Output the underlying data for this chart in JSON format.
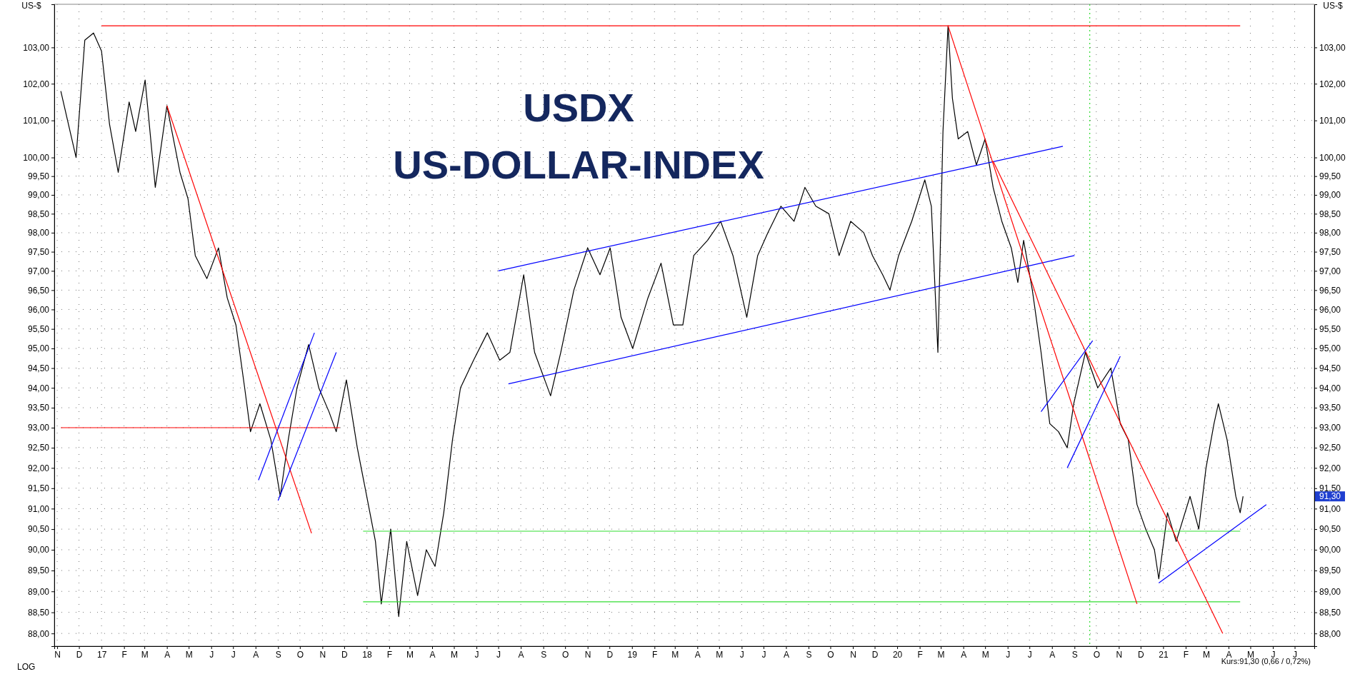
{
  "chart_data": {
    "type": "line",
    "title": "USDX",
    "subtitle": "US-DOLLAR-INDEX",
    "ylabel": "US-$",
    "y2label": "US-$",
    "log": true,
    "grid": true,
    "line_style": "solid",
    "marker": "none",
    "xlim": [
      "2016-10-28",
      "2021-07-28"
    ],
    "xticks": [
      {
        "value": "2016-11-01",
        "label": "N"
      },
      {
        "value": "2016-12-01",
        "label": "D"
      },
      {
        "value": "2017-01-01",
        "label": "17"
      },
      {
        "value": "2017-02-01",
        "label": "F"
      },
      {
        "value": "2017-03-01",
        "label": "M"
      },
      {
        "value": "2017-04-01",
        "label": "A"
      },
      {
        "value": "2017-05-01",
        "label": "M"
      },
      {
        "value": "2017-06-01",
        "label": "J"
      },
      {
        "value": "2017-07-01",
        "label": "J"
      },
      {
        "value": "2017-08-01",
        "label": "A"
      },
      {
        "value": "2017-09-01",
        "label": "S"
      },
      {
        "value": "2017-10-01",
        "label": "O"
      },
      {
        "value": "2017-11-01",
        "label": "N"
      },
      {
        "value": "2017-12-01",
        "label": "D"
      },
      {
        "value": "2018-01-01",
        "label": "18"
      },
      {
        "value": "2018-02-01",
        "label": "F"
      },
      {
        "value": "2018-03-01",
        "label": "M"
      },
      {
        "value": "2018-04-01",
        "label": "A"
      },
      {
        "value": "2018-05-01",
        "label": "M"
      },
      {
        "value": "2018-06-01",
        "label": "J"
      },
      {
        "value": "2018-07-01",
        "label": "J"
      },
      {
        "value": "2018-08-01",
        "label": "A"
      },
      {
        "value": "2018-09-01",
        "label": "S"
      },
      {
        "value": "2018-10-01",
        "label": "O"
      },
      {
        "value": "2018-11-01",
        "label": "N"
      },
      {
        "value": "2018-12-01",
        "label": "D"
      },
      {
        "value": "2019-01-01",
        "label": "19"
      },
      {
        "value": "2019-02-01",
        "label": "F"
      },
      {
        "value": "2019-03-01",
        "label": "M"
      },
      {
        "value": "2019-04-01",
        "label": "A"
      },
      {
        "value": "2019-05-01",
        "label": "M"
      },
      {
        "value": "2019-06-01",
        "label": "J"
      },
      {
        "value": "2019-07-01",
        "label": "J"
      },
      {
        "value": "2019-08-01",
        "label": "A"
      },
      {
        "value": "2019-09-01",
        "label": "S"
      },
      {
        "value": "2019-10-01",
        "label": "O"
      },
      {
        "value": "2019-11-01",
        "label": "N"
      },
      {
        "value": "2019-12-01",
        "label": "D"
      },
      {
        "value": "2020-01-01",
        "label": "20"
      },
      {
        "value": "2020-02-01",
        "label": "F"
      },
      {
        "value": "2020-03-01",
        "label": "M"
      },
      {
        "value": "2020-04-01",
        "label": "A"
      },
      {
        "value": "2020-05-01",
        "label": "M"
      },
      {
        "value": "2020-06-01",
        "label": "J"
      },
      {
        "value": "2020-07-01",
        "label": "J"
      },
      {
        "value": "2020-08-01",
        "label": "A"
      },
      {
        "value": "2020-09-01",
        "label": "S"
      },
      {
        "value": "2020-10-01",
        "label": "O"
      },
      {
        "value": "2020-11-01",
        "label": "N"
      },
      {
        "value": "2020-12-01",
        "label": "D"
      },
      {
        "value": "2021-01-01",
        "label": "21"
      },
      {
        "value": "2021-02-01",
        "label": "F"
      },
      {
        "value": "2021-03-01",
        "label": "M"
      },
      {
        "value": "2021-04-01",
        "label": "A"
      },
      {
        "value": "2021-05-01",
        "label": "M"
      },
      {
        "value": "2021-06-01",
        "label": "J"
      },
      {
        "value": "2021-07-01",
        "label": "J"
      }
    ],
    "ylim": [
      87.7,
      104.2
    ],
    "yticks": [
      {
        "value": 88,
        "label": "88,00"
      },
      {
        "value": 88.5,
        "label": "88,50"
      },
      {
        "value": 89,
        "label": "89,00"
      },
      {
        "value": 89.5,
        "label": "89,50"
      },
      {
        "value": 90,
        "label": "90,00"
      },
      {
        "value": 90.5,
        "label": "90,50"
      },
      {
        "value": 91,
        "label": "91,00"
      },
      {
        "value": 91.5,
        "label": "91,50"
      },
      {
        "value": 92,
        "label": "92,00"
      },
      {
        "value": 92.5,
        "label": "92,50"
      },
      {
        "value": 93,
        "label": "93,00"
      },
      {
        "value": 93.5,
        "label": "93,50"
      },
      {
        "value": 94,
        "label": "94,00"
      },
      {
        "value": 94.5,
        "label": "94,50"
      },
      {
        "value": 95,
        "label": "95,00"
      },
      {
        "value": 95.5,
        "label": "95,50"
      },
      {
        "value": 96,
        "label": "96,00"
      },
      {
        "value": 96.5,
        "label": "96,50"
      },
      {
        "value": 97,
        "label": "97,00"
      },
      {
        "value": 97.5,
        "label": "97,50"
      },
      {
        "value": 98,
        "label": "98,00"
      },
      {
        "value": 98.5,
        "label": "98,50"
      },
      {
        "value": 99,
        "label": "99,00"
      },
      {
        "value": 99.5,
        "label": "99,50"
      },
      {
        "value": 100,
        "label": "100,00"
      },
      {
        "value": 101,
        "label": "101,00"
      },
      {
        "value": 102,
        "label": "102,00"
      },
      {
        "value": 103,
        "label": "103,00"
      }
    ],
    "ref_lines": [
      {
        "axis": "x",
        "value": "2020-09-22",
        "color": "#33dd33",
        "line_style": "dotted"
      }
    ],
    "annotations": [
      "LOG",
      "Kurs:91,30 (0,66 / 0,72%)",
      "91,30"
    ],
    "series": [
      {
        "type": "line",
        "color": "#000000",
        "x": [
          "2016-11-06",
          "2016-11-27",
          "2016-12-09",
          "2016-12-21",
          "2017-01-01",
          "2017-01-12",
          "2017-01-24",
          "2017-02-08",
          "2017-02-17",
          "2017-03-02",
          "2017-03-16",
          "2017-04-01",
          "2017-04-19",
          "2017-04-30",
          "2017-05-10",
          "2017-05-26",
          "2017-06-11",
          "2017-06-23",
          "2017-07-05",
          "2017-07-17",
          "2017-07-25",
          "2017-08-07",
          "2017-08-22",
          "2017-09-04",
          "2017-09-15",
          "2017-09-27",
          "2017-10-13",
          "2017-10-27",
          "2017-11-10",
          "2017-11-20",
          "2017-12-04",
          "2017-12-19",
          "2018-01-01",
          "2018-01-13",
          "2018-01-21",
          "2018-02-03",
          "2018-02-14",
          "2018-02-25",
          "2018-03-12",
          "2018-03-24",
          "2018-04-05",
          "2018-04-17",
          "2018-04-29",
          "2018-05-10",
          "2018-05-28",
          "2018-06-16",
          "2018-07-03",
          "2018-07-17",
          "2018-08-05",
          "2018-08-20",
          "2018-09-11",
          "2018-09-25",
          "2018-10-13",
          "2018-11-01",
          "2018-11-18",
          "2018-12-02",
          "2018-12-17",
          "2019-01-02",
          "2019-01-23",
          "2019-02-10",
          "2019-02-27",
          "2019-03-12",
          "2019-03-27",
          "2019-04-15",
          "2019-05-03",
          "2019-05-20",
          "2019-06-08",
          "2019-06-23",
          "2019-07-07",
          "2019-07-25",
          "2019-08-12",
          "2019-08-27",
          "2019-09-11",
          "2019-09-29",
          "2019-10-13",
          "2019-10-29",
          "2019-11-16",
          "2019-11-28",
          "2019-12-12",
          "2019-12-22",
          "2020-01-03",
          "2020-01-21",
          "2020-02-08",
          "2020-02-17",
          "2020-02-26",
          "2020-03-04",
          "2020-03-11",
          "2020-03-17",
          "2020-03-25",
          "2020-04-07",
          "2020-04-19",
          "2020-05-01",
          "2020-05-12",
          "2020-05-24",
          "2020-06-06",
          "2020-06-15",
          "2020-06-23",
          "2020-07-05",
          "2020-07-17",
          "2020-07-29",
          "2020-08-10",
          "2020-08-22",
          "2020-08-31",
          "2020-09-16",
          "2020-10-03",
          "2020-10-21",
          "2020-11-03",
          "2020-11-14",
          "2020-11-26",
          "2020-12-08",
          "2020-12-20",
          "2020-12-26",
          "2021-01-07",
          "2021-01-19",
          "2021-02-07",
          "2021-02-19",
          "2021-03-01",
          "2021-03-12",
          "2021-03-18",
          "2021-03-30",
          "2021-04-11",
          "2021-04-17",
          "2021-04-21"
        ],
        "values": [
          101.8,
          100.0,
          103.2,
          103.4,
          102.9,
          100.9,
          99.6,
          101.5,
          100.7,
          102.1,
          99.2,
          101.4,
          99.6,
          98.9,
          97.4,
          96.8,
          97.6,
          96.3,
          95.6,
          94.0,
          92.9,
          93.6,
          92.7,
          91.3,
          92.7,
          94.0,
          95.1,
          94.0,
          93.4,
          92.9,
          94.2,
          92.5,
          91.3,
          90.2,
          88.7,
          90.5,
          88.4,
          90.2,
          88.9,
          90.0,
          89.6,
          90.9,
          92.7,
          94.0,
          94.7,
          95.4,
          94.7,
          94.9,
          96.9,
          94.9,
          93.8,
          94.9,
          96.5,
          97.6,
          96.9,
          97.6,
          95.8,
          95.0,
          96.3,
          97.2,
          95.6,
          95.6,
          97.4,
          97.8,
          98.3,
          97.4,
          95.8,
          97.4,
          98.0,
          98.7,
          98.3,
          99.2,
          98.7,
          98.5,
          97.4,
          98.3,
          98.0,
          97.4,
          96.9,
          96.5,
          97.4,
          98.3,
          99.4,
          98.7,
          94.9,
          100.7,
          103.6,
          101.6,
          100.5,
          100.7,
          99.8,
          100.5,
          99.2,
          98.3,
          97.6,
          96.7,
          97.8,
          96.5,
          94.9,
          93.1,
          92.9,
          92.5,
          93.6,
          94.9,
          94.0,
          94.5,
          93.1,
          92.7,
          91.1,
          90.5,
          90.0,
          89.3,
          90.9,
          90.2,
          91.3,
          90.5,
          92.0,
          93.1,
          93.6,
          92.7,
          91.3,
          90.9,
          91.3
        ]
      },
      {
        "type": "line",
        "color": "#ff0000",
        "x": [
          "2017-01-01",
          "2021-04-17"
        ],
        "values": [
          103.6,
          103.6
        ]
      },
      {
        "type": "line",
        "color": "#ff0000",
        "x": [
          "2016-11-06",
          "2017-11-25"
        ],
        "values": [
          93.0,
          93.0
        ]
      },
      {
        "type": "line",
        "color": "#33dd33",
        "x": [
          "2017-12-27",
          "2021-04-17"
        ],
        "values": [
          90.45,
          90.45
        ]
      },
      {
        "type": "line",
        "color": "#33dd33",
        "x": [
          "2017-12-27",
          "2021-04-17"
        ],
        "values": [
          88.75,
          88.75
        ]
      },
      {
        "type": "line",
        "color": "#ff0000",
        "x": [
          "2017-04-01",
          "2017-10-17"
        ],
        "values": [
          101.4,
          90.4
        ]
      },
      {
        "type": "line",
        "color": "#0000ff",
        "x": [
          "2017-08-05",
          "2017-10-21"
        ],
        "values": [
          91.7,
          95.4
        ]
      },
      {
        "type": "line",
        "color": "#0000ff",
        "x": [
          "2017-09-01",
          "2017-11-20"
        ],
        "values": [
          91.2,
          94.9
        ]
      },
      {
        "type": "line",
        "color": "#0000ff",
        "x": [
          "2018-07-01",
          "2020-08-16"
        ],
        "values": [
          97.0,
          100.3
        ]
      },
      {
        "type": "line",
        "color": "#0000ff",
        "x": [
          "2018-07-15",
          "2020-09-01"
        ],
        "values": [
          94.1,
          97.4
        ]
      },
      {
        "type": "line",
        "color": "#ff0000",
        "x": [
          "2020-03-11",
          "2020-11-26"
        ],
        "values": [
          103.6,
          88.7
        ]
      },
      {
        "type": "line",
        "color": "#ff0000",
        "x": [
          "2020-05-12",
          "2021-03-24"
        ],
        "values": [
          99.9,
          88.0
        ]
      },
      {
        "type": "line",
        "color": "#0000ff",
        "x": [
          "2020-07-17",
          "2020-09-26"
        ],
        "values": [
          93.4,
          95.2
        ]
      },
      {
        "type": "line",
        "color": "#0000ff",
        "x": [
          "2020-08-22",
          "2020-11-03"
        ],
        "values": [
          92.0,
          94.8
        ]
      },
      {
        "type": "line",
        "color": "#0000ff",
        "x": [
          "2020-12-26",
          "2021-05-23"
        ],
        "values": [
          89.2,
          91.1
        ]
      }
    ]
  }
}
